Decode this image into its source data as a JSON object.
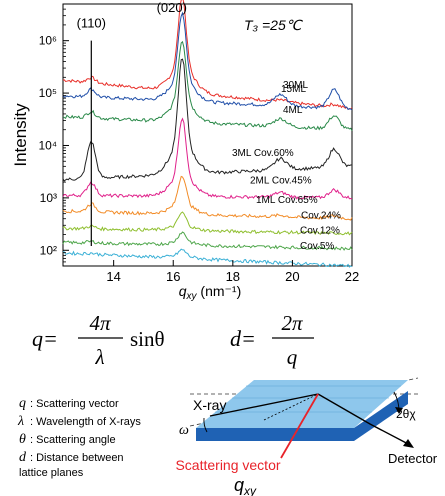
{
  "chart_data": {
    "type": "line",
    "temperature_label": "T₃ =25℃",
    "xlabel": "q_xy (nm⁻¹)",
    "ylabel": "Intensity",
    "xlim": [
      12.3,
      22
    ],
    "ylim_exponent": [
      1.7,
      6.7
    ],
    "x_ticks": [
      14,
      16,
      18,
      20,
      22
    ],
    "y_ticks": [
      {
        "exp": 2,
        "label": "10²"
      },
      {
        "exp": 3,
        "label": "10³"
      },
      {
        "exp": 4,
        "label": "10⁴"
      },
      {
        "exp": 5,
        "label": "10⁵"
      },
      {
        "exp": 6,
        "label": "10⁶"
      }
    ],
    "peak_labels": [
      {
        "text": "(110)",
        "x": 13.25,
        "y_exp": 6.25
      },
      {
        "text": "(020)",
        "x": 15.95,
        "y_exp": 6.55
      }
    ],
    "reference_line_x": 13.25,
    "series": [
      {
        "name": "30ML",
        "color": "#e8302a",
        "base_exp": 5.25,
        "peak020": 1.35,
        "peak110": 0.1,
        "tail": -0.55,
        "bump": 0.05
      },
      {
        "name": "15ML",
        "color": "#1f4ea8",
        "base_exp": 4.95,
        "peak020": 1.25,
        "peak110": 0.15,
        "tail": -0.25,
        "bump": 0.35
      },
      {
        "name": "4ML",
        "color": "#2b8a4a",
        "base_exp": 4.55,
        "peak020": 1.15,
        "peak110": 0.12,
        "tail": -0.25,
        "bump": 0.25
      },
      {
        "name": "3ML  Cov.60%",
        "color": "#222222",
        "base_exp": 3.35,
        "peak020": 1.65,
        "peak110": 0.7,
        "tail": 0.25,
        "bump": 0.35
      },
      {
        "name": "2ML  Cov.45%",
        "color": "#e0208a",
        "base_exp": 3.05,
        "peak020": 1.1,
        "peak110": 0.25,
        "tail": -0.05,
        "bump": 0.15
      },
      {
        "name": "1ML  Cov.65%",
        "color": "#f28c28",
        "base_exp": 2.75,
        "peak020": 0.55,
        "peak110": 0.15,
        "tail": -0.15,
        "bump": 0.05
      },
      {
        "name": "Cov.24%",
        "color": "#8fbf2f",
        "base_exp": 2.42,
        "peak020": 0.25,
        "peak110": 0.05,
        "tail": -0.1,
        "bump": 0.0
      },
      {
        "name": "Cov.12%",
        "color": "#4ea64a",
        "base_exp": 2.15,
        "peak020": 0.18,
        "peak110": 0.03,
        "tail": -0.12,
        "bump": 0.0
      },
      {
        "name": "Cov.5%",
        "color": "#3bb0d6",
        "base_exp": 1.95,
        "peak020": 0.12,
        "peak110": 0.02,
        "tail": -0.25,
        "bump": 0.0
      }
    ]
  },
  "equations": {
    "q_lhs": "q=",
    "q_num": "4π",
    "q_den": "λ",
    "q_fn": "sinθ",
    "d_lhs": "d=",
    "d_num": "2π",
    "d_den": "q"
  },
  "definitions": [
    {
      "sym": "q",
      "text": ": Scattering vector"
    },
    {
      "sym": "λ",
      "text": ": Wavelength of X-rays"
    },
    {
      "sym": "θ",
      "text": ": Scattering angle"
    },
    {
      "sym": "d",
      "text": ": Distance between"
    },
    {
      "sym": "",
      "text": "lattice planes"
    }
  ],
  "diagram": {
    "xray_label": "X-ray",
    "omega_label": "ω",
    "angle_label": "2θχ",
    "detector_label": "Detector",
    "vector_label": "Scattering vector",
    "vector_symbol": "q_xy",
    "colors": {
      "top": "#8ec7ec",
      "side": "#1f62b4",
      "vector": "#e8232a"
    }
  }
}
